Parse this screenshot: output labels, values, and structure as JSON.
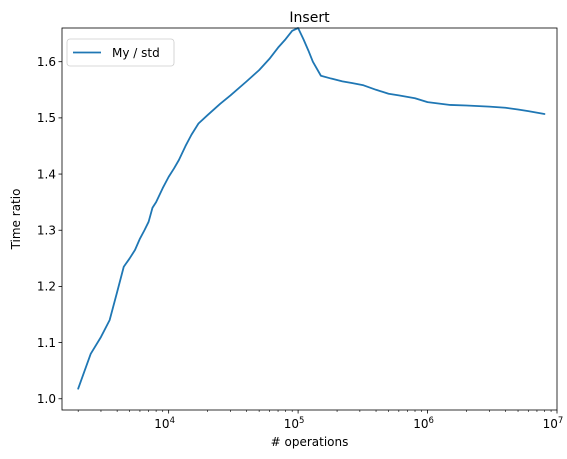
{
  "chart_data": {
    "type": "line",
    "title": "Insert",
    "xlabel": "# operations",
    "ylabel": "Time ratio",
    "xscale": "log",
    "xlim": [
      1500,
      10000000
    ],
    "ylim": [
      0.98,
      1.66
    ],
    "grid": false,
    "legend_position": "top-left",
    "x_tick_labels": [
      {
        "base": "10",
        "exp": "4",
        "value": 10000
      },
      {
        "base": "10",
        "exp": "5",
        "value": 100000
      },
      {
        "base": "10",
        "exp": "6",
        "value": 1000000
      },
      {
        "base": "10",
        "exp": "7",
        "value": 10000000
      }
    ],
    "y_ticks": [
      1.0,
      1.1,
      1.2,
      1.3,
      1.4,
      1.5,
      1.6
    ],
    "y_tick_labels": [
      "1.0",
      "1.1",
      "1.2",
      "1.3",
      "1.4",
      "1.5",
      "1.6"
    ],
    "series": [
      {
        "name": "My / std",
        "color": "#1f77b4",
        "x": [
          2000,
          2500,
          3000,
          3500,
          4000,
          4500,
          5000,
          5500,
          6000,
          6500,
          7000,
          7500,
          8000,
          9000,
          10000,
          11000,
          12000,
          13500,
          15000,
          17000,
          20000,
          25000,
          30000,
          40000,
          50000,
          60000,
          70000,
          80000,
          90000,
          100000,
          110000,
          120000,
          130000,
          150000,
          180000,
          220000,
          260000,
          320000,
          400000,
          500000,
          600000,
          800000,
          1000000,
          1500000,
          2000000,
          3000000,
          4000000,
          5000000,
          6000000,
          8000000
        ],
        "y": [
          1.018,
          1.08,
          1.11,
          1.14,
          1.19,
          1.235,
          1.25,
          1.265,
          1.285,
          1.3,
          1.315,
          1.34,
          1.35,
          1.375,
          1.395,
          1.41,
          1.425,
          1.45,
          1.47,
          1.49,
          1.505,
          1.525,
          1.54,
          1.565,
          1.585,
          1.605,
          1.625,
          1.64,
          1.655,
          1.66,
          1.64,
          1.62,
          1.6,
          1.575,
          1.57,
          1.565,
          1.562,
          1.558,
          1.55,
          1.543,
          1.54,
          1.535,
          1.528,
          1.523,
          1.522,
          1.52,
          1.518,
          1.515,
          1.512,
          1.507
        ]
      }
    ]
  }
}
